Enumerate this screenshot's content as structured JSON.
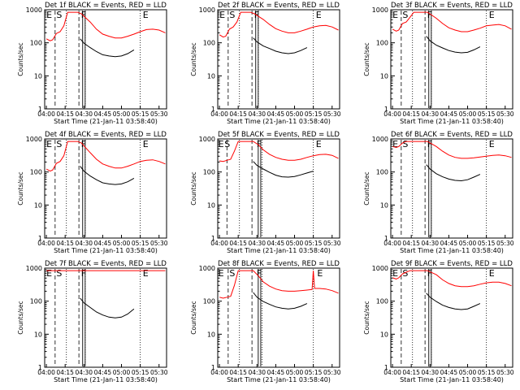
{
  "figure": {
    "ylabel": "Counts/sec",
    "xlabel": "Start Time (21-Jan-11 03:58:40)",
    "x_ticks": [
      "04:00",
      "04:15",
      "04:30",
      "04:45",
      "05:00",
      "05:15",
      "05:30"
    ],
    "y_ticks": [
      "1",
      "10",
      "100",
      "1000"
    ],
    "colors": {
      "events": "#000000",
      "lld": "#ff0000",
      "background": "#ffffff"
    }
  },
  "chart_data": [
    {
      "type": "line",
      "title": "Det 1f BLACK = Events, RED = LLD",
      "xlim": [
        "03:58:40",
        "05:36:00"
      ],
      "ylim": [
        1,
        1200
      ],
      "yscale": "log",
      "markers": {
        "E_start": "04:02",
        "S": "04:08",
        "solid": [
          "04:29",
          "04:31"
        ],
        "E_end": "05:19"
      },
      "dashed_lines": [
        "04:07",
        "04:26"
      ],
      "dotted_lines": [
        "04:16",
        "04:31",
        "05:15"
      ],
      "series": [
        {
          "name": "Events",
          "x": [
            "04:27",
            "04:30",
            "04:35",
            "04:40",
            "04:45",
            "04:50",
            "04:55",
            "05:00",
            "05:05",
            "05:10"
          ],
          "y": [
            150,
            110,
            80,
            60,
            48,
            44,
            42,
            44,
            52,
            68
          ]
        },
        {
          "name": "LLD",
          "x": [
            "04:00",
            "04:03",
            "04:05",
            "04:08",
            "04:11",
            "04:14",
            "04:17",
            "04:21",
            "04:25",
            "04:28",
            "04:35",
            "04:40",
            "04:45",
            "04:50",
            "04:55",
            "05:00",
            "05:05",
            "05:10",
            "05:15",
            "05:20",
            "05:25",
            "05:30",
            "05:35"
          ],
          "y": [
            150,
            130,
            140,
            220,
            250,
            380,
            1000,
            1000,
            1000,
            900,
            500,
            300,
            210,
            180,
            160,
            160,
            180,
            210,
            250,
            290,
            300,
            280,
            230
          ]
        }
      ]
    },
    {
      "type": "line",
      "title": "Det 2f BLACK = Events, RED = LLD",
      "xlim": [
        "03:58:40",
        "05:36:00"
      ],
      "ylim": [
        1,
        1200
      ],
      "yscale": "log",
      "markers": {
        "E_start": "04:02",
        "S": "04:08",
        "solid": [
          "04:29",
          "04:31"
        ],
        "E_end": "05:19"
      },
      "dashed_lines": [
        "04:07",
        "04:26"
      ],
      "dotted_lines": [
        "04:16",
        "04:31",
        "05:15"
      ],
      "series": [
        {
          "name": "Events",
          "x": [
            "04:27",
            "04:30",
            "04:35",
            "04:40",
            "04:45",
            "04:50",
            "04:55",
            "05:00",
            "05:05",
            "05:10"
          ],
          "y": [
            160,
            120,
            90,
            75,
            62,
            55,
            52,
            55,
            65,
            80
          ]
        },
        {
          "name": "LLD",
          "x": [
            "04:00",
            "04:03",
            "04:05",
            "04:08",
            "04:11",
            "04:14",
            "04:17",
            "04:21",
            "04:25",
            "04:28",
            "04:35",
            "04:40",
            "04:45",
            "04:50",
            "04:55",
            "05:00",
            "05:05",
            "05:10",
            "05:15",
            "05:20",
            "05:25",
            "05:30",
            "05:35"
          ],
          "y": [
            200,
            170,
            180,
            300,
            350,
            500,
            1000,
            1000,
            1000,
            900,
            600,
            420,
            310,
            260,
            230,
            230,
            260,
            300,
            350,
            380,
            390,
            350,
            280
          ]
        }
      ]
    },
    {
      "type": "line",
      "title": "Det 3f BLACK = Events, RED = LLD",
      "xlim": [
        "03:58:40",
        "05:36:00"
      ],
      "ylim": [
        1,
        1200
      ],
      "yscale": "log",
      "markers": {
        "E_start": "04:02",
        "S": "04:08",
        "solid": [
          "04:29",
          "04:31"
        ],
        "E_end": "05:19"
      },
      "dashed_lines": [
        "04:07",
        "04:26"
      ],
      "dotted_lines": [
        "04:16",
        "04:31",
        "05:15"
      ],
      "series": [
        {
          "name": "Events",
          "x": [
            "04:27",
            "04:30",
            "04:35",
            "04:40",
            "04:45",
            "04:50",
            "04:55",
            "05:00",
            "05:05",
            "05:10"
          ],
          "y": [
            180,
            130,
            95,
            78,
            65,
            58,
            55,
            57,
            68,
            85
          ]
        },
        {
          "name": "LLD",
          "x": [
            "04:00",
            "04:03",
            "04:05",
            "04:08",
            "04:11",
            "04:14",
            "04:17",
            "04:21",
            "04:25",
            "04:28",
            "04:35",
            "04:40",
            "04:45",
            "04:50",
            "04:55",
            "05:00",
            "05:05",
            "05:10",
            "05:15",
            "05:20",
            "05:25",
            "05:30",
            "05:35"
          ],
          "y": [
            300,
            260,
            280,
            450,
            500,
            700,
            1000,
            1000,
            1000,
            1000,
            650,
            450,
            330,
            280,
            250,
            250,
            280,
            320,
            380,
            400,
            420,
            380,
            300
          ]
        }
      ]
    },
    {
      "type": "line",
      "title": "Det 4f BLACK = Events, RED = LLD",
      "xlim": [
        "03:58:40",
        "05:36:00"
      ],
      "ylim": [
        1,
        1200
      ],
      "yscale": "log",
      "markers": {
        "E_start": "04:02",
        "S": "04:08",
        "solid": [
          "04:29",
          "04:31"
        ],
        "E_end": "05:19"
      },
      "dashed_lines": [
        "04:07",
        "04:26"
      ],
      "dotted_lines": [
        "04:16",
        "04:31",
        "05:15"
      ],
      "series": [
        {
          "name": "Events",
          "x": [
            "04:27",
            "04:30",
            "04:35",
            "04:40",
            "04:45",
            "04:50",
            "04:55",
            "05:00",
            "05:05",
            "05:10"
          ],
          "y": [
            170,
            120,
            85,
            65,
            52,
            48,
            46,
            48,
            56,
            72
          ]
        },
        {
          "name": "LLD",
          "x": [
            "04:00",
            "04:03",
            "04:05",
            "04:08",
            "04:11",
            "04:14",
            "04:17",
            "04:21",
            "04:25",
            "04:28",
            "04:35",
            "04:40",
            "04:45",
            "04:50",
            "04:55",
            "05:00",
            "05:05",
            "05:10",
            "05:15",
            "05:20",
            "05:25",
            "05:30",
            "05:35"
          ],
          "y": [
            140,
            120,
            130,
            210,
            240,
            360,
            1000,
            1000,
            1000,
            900,
            450,
            280,
            200,
            170,
            150,
            150,
            170,
            200,
            240,
            260,
            270,
            240,
            200
          ]
        }
      ]
    },
    {
      "type": "line",
      "title": "Det 5f BLACK = Events, RED = LLD",
      "xlim": [
        "03:58:40",
        "05:36:00"
      ],
      "ylim": [
        1,
        1200
      ],
      "yscale": "log",
      "markers": {
        "E_start": "04:01",
        "S": "04:04",
        "solid": [
          "04:31",
          "04:33"
        ],
        "E_end": "05:19"
      },
      "dashed_lines": [
        "04:06",
        "04:26"
      ],
      "dotted_lines": [
        "04:16",
        "04:34",
        "05:15"
      ],
      "series": [
        {
          "name": "Events",
          "x": [
            "04:27",
            "04:30",
            "04:35",
            "04:40",
            "04:45",
            "04:50",
            "04:55",
            "05:00",
            "05:05",
            "05:10",
            "05:15"
          ],
          "y": [
            240,
            180,
            140,
            110,
            90,
            80,
            78,
            82,
            92,
            105,
            120
          ]
        },
        {
          "name": "LLD",
          "x": [
            "04:00",
            "04:03",
            "04:06",
            "04:09",
            "04:12",
            "04:15",
            "04:18",
            "04:22",
            "04:27",
            "04:31",
            "04:35",
            "04:40",
            "04:45",
            "04:50",
            "04:55",
            "05:00",
            "05:05",
            "05:10",
            "05:15",
            "05:20",
            "05:25",
            "05:30",
            "05:35"
          ],
          "y": [
            250,
            240,
            260,
            280,
            500,
            1000,
            1000,
            1000,
            1000,
            800,
            550,
            400,
            320,
            280,
            260,
            260,
            280,
            320,
            360,
            390,
            400,
            370,
            300
          ]
        }
      ]
    },
    {
      "type": "line",
      "title": "Det 6f BLACK = Events, RED = LLD",
      "xlim": [
        "03:58:40",
        "05:36:00"
      ],
      "ylim": [
        1,
        1200
      ],
      "yscale": "log",
      "markers": {
        "E_start": "04:02",
        "S": "04:08",
        "solid": [
          "04:29",
          "04:31"
        ],
        "E_end": "05:19"
      },
      "dashed_lines": [
        "04:07",
        "04:26"
      ],
      "dotted_lines": [
        "04:16",
        "04:31",
        "05:15"
      ],
      "series": [
        {
          "name": "Events",
          "x": [
            "04:27",
            "04:30",
            "04:35",
            "04:40",
            "04:45",
            "04:50",
            "04:55",
            "05:00",
            "05:05",
            "05:10"
          ],
          "y": [
            190,
            140,
            100,
            80,
            68,
            62,
            60,
            65,
            78,
            95
          ]
        },
        {
          "name": "LLD",
          "x": [
            "04:00",
            "04:03",
            "04:05",
            "04:08",
            "04:11",
            "04:14",
            "04:17",
            "04:21",
            "04:25",
            "04:28",
            "04:35",
            "04:40",
            "04:45",
            "04:50",
            "04:55",
            "05:00",
            "05:05",
            "05:10",
            "05:15",
            "05:20",
            "05:25",
            "05:30",
            "05:35"
          ],
          "y": [
            700,
            650,
            700,
            900,
            1000,
            1000,
            1000,
            1000,
            1000,
            1000,
            700,
            500,
            380,
            320,
            300,
            300,
            310,
            330,
            350,
            370,
            380,
            360,
            320
          ]
        }
      ]
    },
    {
      "type": "line",
      "title": "Det 7f BLACK = Events, RED = LLD",
      "xlim": [
        "03:58:40",
        "05:36:00"
      ],
      "ylim": [
        1,
        1200
      ],
      "yscale": "log",
      "markers": {
        "E_start": "04:02",
        "S": "04:08",
        "solid": [
          "04:29",
          "04:31"
        ],
        "E_end": "05:19"
      },
      "dashed_lines": [
        "04:07",
        "04:26"
      ],
      "dotted_lines": [
        "04:16",
        "04:31",
        "05:15"
      ],
      "series": [
        {
          "name": "Events",
          "x": [
            "04:27",
            "04:30",
            "04:35",
            "04:40",
            "04:45",
            "04:50",
            "04:55",
            "05:00",
            "05:05",
            "05:10"
          ],
          "y": [
            140,
            100,
            72,
            52,
            42,
            36,
            34,
            36,
            45,
            65
          ]
        },
        {
          "name": "LLD",
          "x": [
            "04:00",
            "04:03",
            "04:06",
            "04:09",
            "04:12",
            "04:15",
            "04:20",
            "04:25",
            "04:30",
            "04:35",
            "04:40",
            "04:45",
            "04:50",
            "04:55",
            "05:00",
            "05:05",
            "05:10",
            "05:15",
            "05:20",
            "05:25",
            "05:30",
            "05:35"
          ],
          "y": [
            1000,
            1000,
            1000,
            1000,
            1000,
            1000,
            1000,
            1000,
            1000,
            1000,
            1000,
            1000,
            1000,
            1000,
            1000,
            1000,
            1000,
            1000,
            1000,
            1000,
            1000,
            1000
          ]
        }
      ]
    },
    {
      "type": "line",
      "title": "Det 8f BLACK = Events, RED = LLD",
      "xlim": [
        "03:58:40",
        "05:36:00"
      ],
      "ylim": [
        1,
        1200
      ],
      "yscale": "log",
      "markers": {
        "E_start": "04:01",
        "S": "04:08",
        "solid": [
          "04:31",
          "04:33"
        ],
        "E_end": "05:20"
      },
      "dashed_lines": [
        "04:07",
        "04:26"
      ],
      "dotted_lines": [
        "04:16",
        "04:34",
        "05:15"
      ],
      "series": [
        {
          "name": "Events",
          "x": [
            "04:27",
            "04:30",
            "04:35",
            "04:40",
            "04:45",
            "04:50",
            "04:55",
            "05:00",
            "05:05",
            "05:10"
          ],
          "y": [
            210,
            150,
            110,
            90,
            75,
            68,
            65,
            68,
            78,
            95
          ]
        },
        {
          "name": "LLD",
          "x": [
            "04:00",
            "04:03",
            "04:06",
            "04:09",
            "04:12",
            "04:15",
            "04:18",
            "04:22",
            "04:27",
            "04:31",
            "04:35",
            "04:40",
            "04:45",
            "04:50",
            "04:55",
            "05:00",
            "05:05",
            "05:10",
            "05:14",
            "05:15",
            "05:16",
            "05:20",
            "05:25",
            "05:30",
            "05:35"
          ],
          "y": [
            150,
            140,
            150,
            160,
            350,
            1000,
            1000,
            1000,
            1000,
            700,
            450,
            330,
            270,
            240,
            230,
            230,
            240,
            250,
            260,
            1000,
            280,
            280,
            270,
            240,
            200
          ]
        }
      ]
    },
    {
      "type": "line",
      "title": "Det 9f BLACK = Events, RED = LLD",
      "xlim": [
        "03:58:40",
        "05:36:00"
      ],
      "ylim": [
        1,
        1200
      ],
      "yscale": "log",
      "markers": {
        "E_start": "04:02",
        "S": "04:08",
        "solid": [
          "04:29",
          "04:31"
        ],
        "E_end": "05:19"
      },
      "dashed_lines": [
        "04:07",
        "04:26"
      ],
      "dotted_lines": [
        "04:16",
        "04:31",
        "05:15"
      ],
      "series": [
        {
          "name": "Events",
          "x": [
            "04:27",
            "04:30",
            "04:35",
            "04:40",
            "04:45",
            "04:50",
            "04:55",
            "05:00",
            "05:05",
            "05:10"
          ],
          "y": [
            200,
            150,
            110,
            85,
            72,
            65,
            62,
            65,
            78,
            95
          ]
        },
        {
          "name": "LLD",
          "x": [
            "04:00",
            "04:03",
            "04:05",
            "04:08",
            "04:11",
            "04:14",
            "04:17",
            "04:21",
            "04:25",
            "04:28",
            "04:35",
            "04:40",
            "04:45",
            "04:50",
            "04:55",
            "05:00",
            "05:05",
            "05:10",
            "05:15",
            "05:20",
            "05:25",
            "05:30",
            "05:35"
          ],
          "y": [
            600,
            550,
            600,
            800,
            900,
            1000,
            1000,
            1000,
            1000,
            1000,
            750,
            520,
            400,
            340,
            320,
            320,
            340,
            380,
            420,
            440,
            440,
            400,
            340
          ]
        }
      ]
    }
  ]
}
